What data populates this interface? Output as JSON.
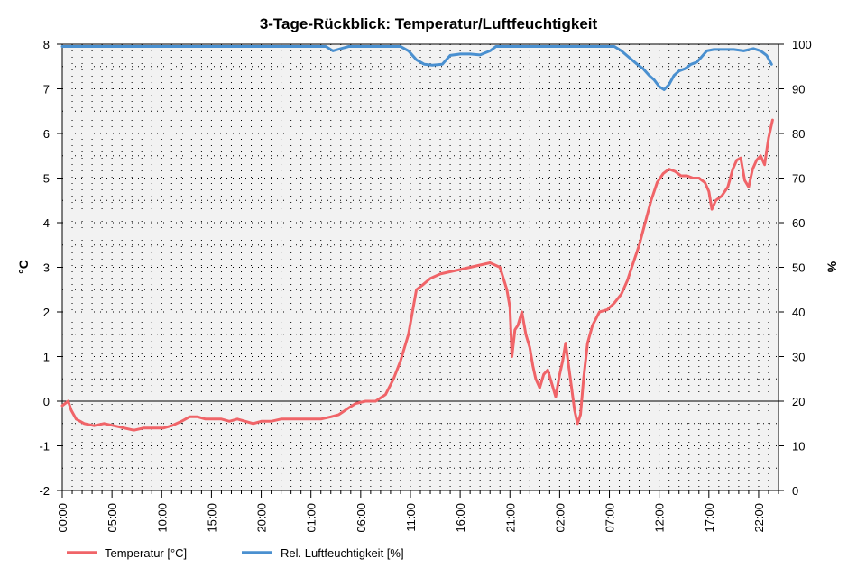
{
  "chart_data": {
    "type": "line",
    "title": "3-Tage-Rückblick: Temperatur/Luftfeuchtigkeit",
    "ylabel": "°C",
    "y2label": "%",
    "ylim": [
      -2,
      8
    ],
    "y2lim": [
      0,
      100
    ],
    "grid": true,
    "legend_placement": "bottom-left",
    "x_ticks": [
      "00:00",
      "05:00",
      "10:00",
      "15:00",
      "20:00",
      "01:00",
      "06:00",
      "11:00",
      "16:00",
      "21:00",
      "02:00",
      "07:00",
      "12:00",
      "17:00",
      "22:00"
    ],
    "y_ticks": [
      "8",
      "7",
      "6",
      "5",
      "4",
      "3",
      "2",
      "1",
      "0",
      "-1",
      "-2"
    ],
    "y2_ticks": [
      "100",
      "90",
      "80",
      "70",
      "60",
      "50",
      "40",
      "30",
      "20",
      "10",
      "0"
    ],
    "x_hours_max": 72,
    "series": [
      {
        "name": "Temperatur [°C]",
        "axis": "left",
        "color": "#f06468",
        "points": [
          [
            0,
            -0.1
          ],
          [
            0.6,
            0
          ],
          [
            0.9,
            -0.2
          ],
          [
            1.4,
            -0.4
          ],
          [
            2.2,
            -0.5
          ],
          [
            3.2,
            -0.55
          ],
          [
            4.2,
            -0.5
          ],
          [
            5.2,
            -0.55
          ],
          [
            6.2,
            -0.6
          ],
          [
            7.2,
            -0.65
          ],
          [
            8.2,
            -0.6
          ],
          [
            9.2,
            -0.6
          ],
          [
            10.2,
            -0.6
          ],
          [
            11.0,
            -0.55
          ],
          [
            12.0,
            -0.45
          ],
          [
            12.8,
            -0.35
          ],
          [
            13.6,
            -0.35
          ],
          [
            14.4,
            -0.4
          ],
          [
            15.2,
            -0.4
          ],
          [
            16.0,
            -0.4
          ],
          [
            16.8,
            -0.45
          ],
          [
            17.6,
            -0.4
          ],
          [
            18.4,
            -0.45
          ],
          [
            19.2,
            -0.5
          ],
          [
            20.0,
            -0.45
          ],
          [
            21.0,
            -0.45
          ],
          [
            22.0,
            -0.4
          ],
          [
            23.0,
            -0.4
          ],
          [
            24.0,
            -0.4
          ],
          [
            25.0,
            -0.4
          ],
          [
            26.0,
            -0.4
          ],
          [
            27.0,
            -0.35
          ],
          [
            27.8,
            -0.3
          ],
          [
            28.8,
            -0.15
          ],
          [
            29.5,
            -0.05
          ],
          [
            30.5,
            0
          ],
          [
            31.5,
            0
          ],
          [
            32.5,
            0.15
          ],
          [
            33.3,
            0.5
          ],
          [
            34.0,
            0.9
          ],
          [
            34.8,
            1.5
          ],
          [
            35.2,
            2.0
          ],
          [
            35.6,
            2.5
          ],
          [
            36.2,
            2.6
          ],
          [
            37.0,
            2.75
          ],
          [
            38.0,
            2.85
          ],
          [
            39.0,
            2.9
          ],
          [
            40.0,
            2.95
          ],
          [
            41.0,
            3.0
          ],
          [
            42.0,
            3.05
          ],
          [
            43.0,
            3.1
          ],
          [
            44.0,
            3.0
          ],
          [
            44.7,
            2.5
          ],
          [
            45.0,
            2.1
          ],
          [
            45.2,
            1.0
          ],
          [
            45.5,
            1.6
          ],
          [
            45.8,
            1.7
          ],
          [
            46.2,
            2.0
          ],
          [
            46.6,
            1.5
          ],
          [
            47.0,
            1.2
          ],
          [
            47.3,
            0.8
          ],
          [
            47.6,
            0.5
          ],
          [
            48.0,
            0.3
          ],
          [
            48.4,
            0.6
          ],
          [
            48.8,
            0.7
          ],
          [
            49.2,
            0.4
          ],
          [
            49.6,
            0.1
          ],
          [
            50.0,
            0.6
          ],
          [
            50.3,
            0.9
          ],
          [
            50.6,
            1.3
          ],
          [
            50.9,
            0.8
          ],
          [
            51.2,
            0.3
          ],
          [
            51.5,
            -0.2
          ],
          [
            51.8,
            -0.5
          ],
          [
            52.1,
            -0.3
          ],
          [
            52.4,
            0.5
          ],
          [
            52.8,
            1.3
          ],
          [
            53.3,
            1.7
          ],
          [
            54.0,
            2.0
          ],
          [
            54.8,
            2.05
          ],
          [
            55.5,
            2.2
          ],
          [
            56.2,
            2.4
          ],
          [
            56.8,
            2.7
          ],
          [
            57.4,
            3.1
          ],
          [
            58.0,
            3.5
          ],
          [
            58.6,
            4.0
          ],
          [
            59.2,
            4.5
          ],
          [
            59.8,
            4.9
          ],
          [
            60.4,
            5.1
          ],
          [
            61.0,
            5.2
          ],
          [
            61.6,
            5.15
          ],
          [
            62.2,
            5.05
          ],
          [
            62.8,
            5.05
          ],
          [
            63.4,
            5.0
          ],
          [
            64.0,
            5.0
          ],
          [
            64.6,
            4.9
          ],
          [
            65.0,
            4.7
          ],
          [
            65.3,
            4.3
          ],
          [
            65.7,
            4.5
          ],
          [
            66.3,
            4.6
          ],
          [
            66.9,
            4.8
          ],
          [
            67.4,
            5.2
          ],
          [
            67.8,
            5.4
          ],
          [
            68.2,
            5.45
          ],
          [
            68.6,
            4.95
          ],
          [
            69.0,
            4.8
          ],
          [
            69.4,
            5.2
          ],
          [
            69.8,
            5.4
          ],
          [
            70.2,
            5.5
          ],
          [
            70.6,
            5.3
          ],
          [
            71.0,
            5.9
          ],
          [
            71.4,
            6.3
          ]
        ]
      },
      {
        "name": "Rel. Luftfeuchtigkeit [%]",
        "axis": "right",
        "color": "#4a90d0",
        "points": [
          [
            0,
            99.5
          ],
          [
            4,
            99.5
          ],
          [
            8,
            99.5
          ],
          [
            12,
            99.5
          ],
          [
            16,
            99.5
          ],
          [
            20,
            99.5
          ],
          [
            24,
            99.5
          ],
          [
            26.5,
            99.5
          ],
          [
            27.2,
            98.5
          ],
          [
            28.0,
            99.0
          ],
          [
            28.8,
            99.5
          ],
          [
            30,
            99.5
          ],
          [
            34,
            99.5
          ],
          [
            34.8,
            98.5
          ],
          [
            35.6,
            96.5
          ],
          [
            36.4,
            95.5
          ],
          [
            37.2,
            95.3
          ],
          [
            38.2,
            95.5
          ],
          [
            39.0,
            97.5
          ],
          [
            40.0,
            97.8
          ],
          [
            41.0,
            97.8
          ],
          [
            42.0,
            97.6
          ],
          [
            43.0,
            98.5
          ],
          [
            43.6,
            99.5
          ],
          [
            48,
            99.5
          ],
          [
            52,
            99.5
          ],
          [
            55.5,
            99.5
          ],
          [
            56.2,
            98.5
          ],
          [
            57.0,
            97.0
          ],
          [
            57.8,
            95.5
          ],
          [
            58.4,
            94.5
          ],
          [
            59.0,
            93.0
          ],
          [
            59.5,
            92.0
          ],
          [
            60.0,
            90.5
          ],
          [
            60.5,
            89.8
          ],
          [
            61.0,
            91.0
          ],
          [
            61.5,
            93.0
          ],
          [
            62.0,
            94.0
          ],
          [
            62.6,
            94.5
          ],
          [
            63.2,
            95.5
          ],
          [
            63.8,
            96.0
          ],
          [
            64.2,
            97.0
          ],
          [
            64.8,
            98.5
          ],
          [
            65.5,
            98.8
          ],
          [
            66.5,
            98.8
          ],
          [
            67.5,
            98.8
          ],
          [
            68.5,
            98.5
          ],
          [
            69.5,
            99.0
          ],
          [
            70.2,
            98.5
          ],
          [
            70.8,
            97.5
          ],
          [
            71.3,
            95.5
          ]
        ]
      }
    ]
  }
}
